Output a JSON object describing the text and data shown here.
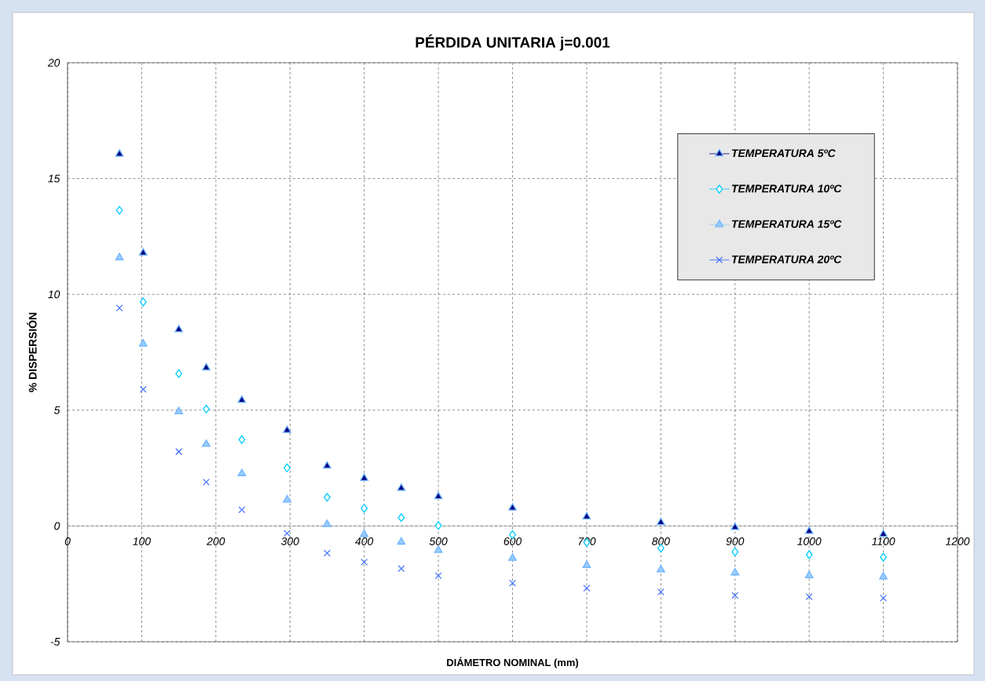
{
  "chart_data": {
    "type": "scatter",
    "title": "PÉRDIDA UNITARIA j=0.001",
    "xlabel": "DIÁMETRO NOMINAL  (mm)",
    "ylabel": "%  DISPERSIÓN",
    "x": [
      70,
      102,
      150,
      187,
      235,
      296,
      350,
      400,
      450,
      500,
      600,
      700,
      800,
      900,
      1000,
      1100
    ],
    "series": [
      {
        "name": "TEMPERATURA 5ºC",
        "color": "#000080",
        "marker": "triangle",
        "values": [
          16.06,
          11.79,
          8.48,
          6.83,
          5.43,
          4.13,
          2.59,
          2.06,
          1.63,
          1.27,
          0.78,
          0.4,
          0.15,
          -0.06,
          -0.23,
          -0.36
        ]
      },
      {
        "name": "TEMPERATURA 10ºC",
        "color": "#00ccff",
        "marker": "diamond",
        "values": [
          13.63,
          9.67,
          6.58,
          5.05,
          3.73,
          2.51,
          1.24,
          0.76,
          0.36,
          0.02,
          -0.38,
          -0.71,
          -0.96,
          -1.12,
          -1.24,
          -1.35
        ]
      },
      {
        "name": "TEMPERATURA 15ºC",
        "color": "#99ccff",
        "marker": "triangle",
        "values": [
          11.59,
          7.86,
          4.94,
          3.53,
          2.26,
          1.13,
          0.07,
          -0.36,
          -0.69,
          -1.05,
          -1.39,
          -1.7,
          -1.89,
          -2.02,
          -2.14,
          -2.19
        ]
      },
      {
        "name": "TEMPERATURA 20ºC",
        "color": "#3366ff",
        "marker": "cross",
        "values": [
          9.41,
          5.9,
          3.21,
          1.89,
          0.7,
          -0.32,
          -1.17,
          -1.56,
          -1.84,
          -2.15,
          -2.47,
          -2.69,
          -2.85,
          -3.0,
          -3.05,
          -3.11
        ]
      }
    ],
    "xlim": [
      0,
      1200
    ],
    "ylim": [
      -5,
      20
    ],
    "xticks": [
      0,
      100,
      200,
      300,
      400,
      500,
      600,
      700,
      800,
      900,
      1000,
      1100,
      1200
    ],
    "yticks": [
      -5,
      0,
      5,
      10,
      15,
      20
    ],
    "grid": true,
    "legend": "top right"
  }
}
